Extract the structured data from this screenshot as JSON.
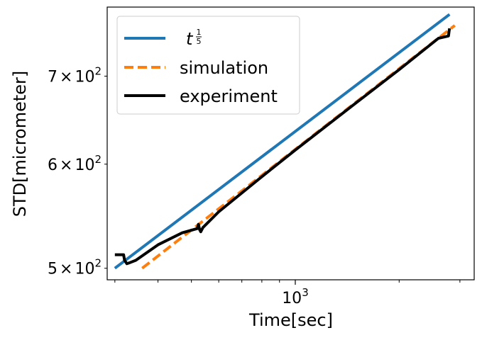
{
  "chart_data": {
    "type": "line",
    "scale": {
      "x": "log",
      "y": "log"
    },
    "xlabel": "Time[sec]",
    "ylabel": "STD[micrometer]",
    "xlim": [
      285,
      3300
    ],
    "ylim": [
      490,
      790
    ],
    "x_ticks_major": [
      {
        "value": 1000,
        "base": "10",
        "exp": "3"
      }
    ],
    "x_ticks_minor": [
      300,
      400,
      500,
      600,
      700,
      800,
      900,
      2000,
      3000
    ],
    "y_ticks": [
      {
        "value": 500,
        "mantissa": "5",
        "base": "10",
        "exp": "2"
      },
      {
        "value": 600,
        "mantissa": "6",
        "base": "10",
        "exp": "2"
      },
      {
        "value": 700,
        "mantissa": "7",
        "base": "10",
        "exp": "2"
      }
    ],
    "series": [
      {
        "name": "t^(1/5)",
        "legend_base": "t",
        "legend_num": "1",
        "legend_den": "5",
        "color": "#1f77b4",
        "style": "solid",
        "x": [
          300,
          2800
        ],
        "y": [
          500,
          780
        ]
      },
      {
        "name": "simulation",
        "label": "simulation",
        "color": "#ff7f0e",
        "style": "dashed",
        "x": [
          360,
          2900
        ],
        "y": [
          500,
          765
        ]
      },
      {
        "name": "experiment",
        "label": "experiment",
        "color": "#000000",
        "style": "solid",
        "x": [
          300,
          318,
          320,
          325,
          332,
          345,
          400,
          470,
          520,
          524,
          528,
          532,
          540,
          600,
          800,
          1000,
          1500,
          2000,
          2600,
          2780,
          2790,
          2800
        ],
        "y": [
          512,
          512,
          507,
          504,
          505,
          507,
          521,
          532,
          536,
          540,
          535,
          533,
          537,
          552,
          587,
          615,
          668,
          708,
          748,
          751,
          757,
          761
        ]
      }
    ]
  }
}
